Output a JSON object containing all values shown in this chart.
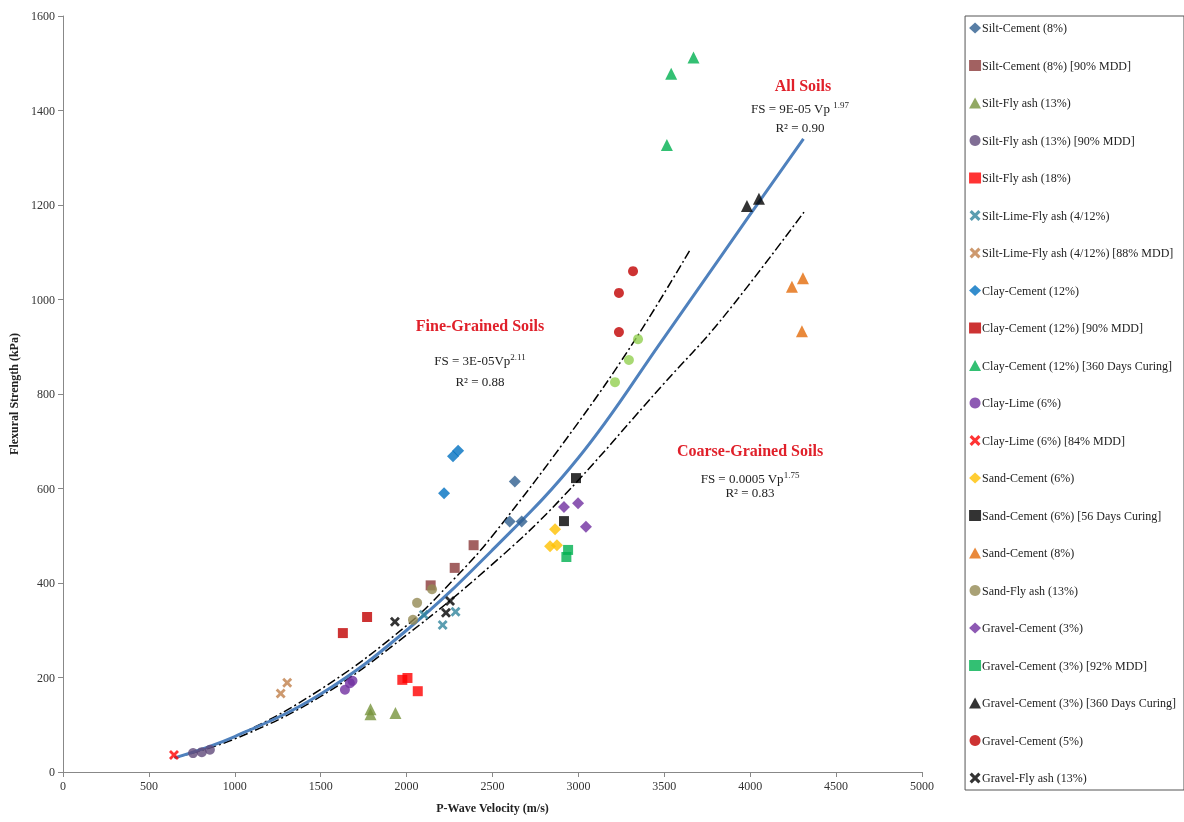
{
  "chart_data": {
    "type": "scatter",
    "xlabel": "P-Wave Velocity (m/s)",
    "ylabel": "Flexural Strength (kPa)",
    "xlim": [
      0,
      5000
    ],
    "xticks": [
      0,
      500,
      1000,
      1500,
      2000,
      2500,
      3000,
      3500,
      4000,
      4500,
      5000
    ],
    "ylim": [
      0,
      1600
    ],
    "yticks": [
      0,
      200,
      400,
      600,
      800,
      1000,
      1200,
      1400,
      1600
    ],
    "grid": false,
    "legend": "right",
    "series": [
      {
        "name": "Silt-Cement (8%)",
        "color": "#2e5e8e",
        "marker": "diamond",
        "x": [
          2630,
          2600,
          2670
        ],
        "values": [
          615,
          530,
          530
        ]
      },
      {
        "name": "Silt-Cement (8%) [90% MDD]",
        "color": "#8b3a3a",
        "marker": "square",
        "x": [
          2390,
          2280,
          2140
        ],
        "values": [
          480,
          432,
          395
        ]
      },
      {
        "name": "Silt-Fly ash (13%)",
        "color": "#77933c",
        "marker": "triangle",
        "x": [
          1790,
          1790,
          1935
        ],
        "values": [
          133,
          122,
          125
        ]
      },
      {
        "name": "Silt-Fly ash (13%) [90% MDD]",
        "color": "#604a7b",
        "marker": "circle",
        "x": [
          757,
          808,
          855
        ],
        "values": [
          40,
          42,
          47
        ]
      },
      {
        "name": "Silt-Fly ash (18%)",
        "color": "#ff0000",
        "marker": "square",
        "x": [
          1975,
          2005,
          2065
        ],
        "values": [
          195,
          199,
          171
        ]
      },
      {
        "name": "Silt-Lime-Fly ash (4/12%)",
        "color": "#31859c",
        "marker": "cross",
        "x": [
          2100,
          2210,
          2285
        ],
        "values": [
          333,
          311,
          339
        ]
      },
      {
        "name": "Silt-Lime-Fly ash (4/12%) [88% MDD]",
        "color": "#c0804a",
        "marker": "cross",
        "x": [
          1305,
          1267
        ],
        "values": [
          189,
          166
        ]
      },
      {
        "name": "Clay-Cement (12%)",
        "color": "#0070c0",
        "marker": "diamond",
        "x": [
          2270,
          2300,
          2218
        ],
        "values": [
          668,
          680,
          590
        ]
      },
      {
        "name": "Clay-Cement (12%) [90% MDD]",
        "color": "#c00000",
        "marker": "square",
        "x": [
          1629,
          1770
        ],
        "values": [
          294,
          328
        ]
      },
      {
        "name": "Clay-Cement (12%) [360 Days Curing]",
        "color": "#00b050",
        "marker": "triangle",
        "x": [
          3670,
          3540,
          3515
        ],
        "values": [
          1512,
          1478,
          1327
        ]
      },
      {
        "name": "Clay-Lime (6%)",
        "color": "#7030a0",
        "marker": "circle",
        "x": [
          1641,
          1670,
          1685
        ],
        "values": [
          174,
          188,
          193
        ]
      },
      {
        "name": "Clay-Lime (6%) [84% MDD]",
        "color": "#ff0000",
        "marker": "cross",
        "x": [
          646
        ],
        "values": [
          36
        ]
      },
      {
        "name": "Sand-Cement (6%)",
        "color": "#ffc000",
        "marker": "diamond",
        "x": [
          2864,
          2835,
          2875
        ],
        "values": [
          514,
          478,
          480
        ]
      },
      {
        "name": "Sand-Cement (6%) [56 Days Curing]",
        "color": "#000000",
        "marker": "square",
        "x": [
          2986,
          2916
        ],
        "values": [
          622,
          531
        ]
      },
      {
        "name": "Sand-Cement (8%)",
        "color": "#e46c0a",
        "marker": "triangle",
        "x": [
          4307,
          4243,
          4301
        ],
        "values": [
          1045,
          1027,
          933
        ]
      },
      {
        "name": "Sand-Fly ash (13%)",
        "color": "#948a54",
        "marker": "circle",
        "x": [
          2148,
          2061,
          2037
        ],
        "values": [
          387,
          358,
          322
        ]
      },
      {
        "name": "Gravel-Cement (3%)",
        "color": "#7030a0",
        "marker": "diamond",
        "x": [
          2916,
          2998,
          3044
        ],
        "values": [
          561,
          569,
          519
        ]
      },
      {
        "name": "Gravel-Cement (3%) [92% MDD]",
        "color": "#00b050",
        "marker": "square",
        "x": [
          2940,
          2930
        ],
        "values": [
          470,
          455
        ]
      },
      {
        "name": "Gravel-Cement (3%) [360 Days Curing]",
        "color": "#000000",
        "marker": "triangle",
        "x": [
          3981,
          4051
        ],
        "values": [
          1198,
          1213
        ]
      },
      {
        "name": "Gravel-Cement (5%)",
        "color": "#c00000",
        "marker": "circle",
        "x": [
          3318,
          3236,
          3236
        ],
        "values": [
          1060,
          1014,
          931
        ]
      },
      {
        "name": "Gravel-Fly ash (13%)",
        "color": "#000000",
        "marker": "cross",
        "x": [
          1932,
          2229,
          2253
        ],
        "values": [
          318,
          337,
          362
        ]
      },
      {
        "color": "#92d050",
        "marker": "circle",
        "x": [
          3347,
          3294,
          3213
        ],
        "values": [
          916,
          872,
          825
        ]
      },
      {
        "type": "line",
        "color": "#000000",
        "line_style": "dashed",
        "x": [
          650,
          1000,
          1500,
          2000,
          2270,
          2500,
          3000,
          3341,
          3650
        ],
        "values": [
          30,
          75,
          175,
          310,
          406,
          500,
          740,
          921,
          1105
        ]
      },
      {
        "type": "line",
        "color": "#000000",
        "line_style": "dashed",
        "x": [
          650,
          1000,
          1500,
          2000,
          2500,
          2893,
          3500,
          3824,
          4313
        ],
        "values": [
          30,
          70,
          160,
          290,
          440,
          576,
          823,
          954,
          1185
        ]
      },
      {
        "type": "line",
        "color": "#4f81bd",
        "line_style": "solid",
        "x": [
          650,
          1000,
          1500,
          2000,
          2500,
          3000,
          3500,
          4000,
          4310
        ],
        "values": [
          30,
          75,
          165,
          300,
          470,
          665,
          920,
          1180,
          1340
        ]
      }
    ],
    "annotations": [
      "All Soils",
      "FS = 9E-05 Vp $^{1.97}$",
      "R² = 0.90",
      "Fine-Grained Soils",
      "FS = 3E-05Vp$^{2.11}$",
      "R² = 0.88",
      "Coarse-Grained Soils",
      "FS = 0.0005 Vp$^{1.75}$",
      "R² = 0.83"
    ]
  }
}
